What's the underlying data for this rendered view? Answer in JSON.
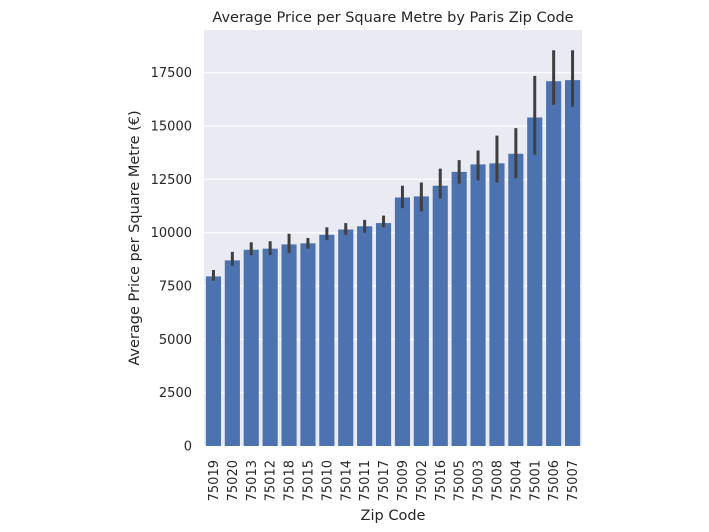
{
  "colors": {
    "plot_background": "#eaeaf2",
    "grid": "#ffffff",
    "bar": "#4c72b0",
    "error_bar": "#3f3f3f",
    "text": "#262626"
  },
  "chart_data": {
    "type": "bar",
    "title": "Average Price per Square Metre by Paris Zip Code",
    "xlabel": "Zip Code",
    "ylabel": "Average Price per Square Metre (€)",
    "ylim": [
      0,
      19500
    ],
    "yticks": [
      0,
      2500,
      5000,
      7500,
      10000,
      12500,
      15000,
      17500
    ],
    "ytick_labels": [
      "0",
      "2500",
      "5000",
      "7500",
      "10000",
      "12500",
      "15000",
      "17500"
    ],
    "grid": "horizontal",
    "categories": [
      "75019",
      "75020",
      "75013",
      "75012",
      "75018",
      "75015",
      "75010",
      "75014",
      "75011",
      "75017",
      "75009",
      "75002",
      "75016",
      "75005",
      "75003",
      "75008",
      "75004",
      "75001",
      "75006",
      "75007"
    ],
    "values": [
      7950,
      8700,
      9200,
      9250,
      9450,
      9500,
      9900,
      10150,
      10300,
      10450,
      11650,
      11700,
      12200,
      12850,
      13200,
      13250,
      13700,
      15400,
      17100,
      17150
    ],
    "error_low": [
      7750,
      8450,
      8950,
      8950,
      9050,
      9250,
      9650,
      9900,
      10000,
      10250,
      11150,
      11000,
      11600,
      12300,
      12450,
      12350,
      12550,
      13650,
      16000,
      15900
    ],
    "error_high": [
      8250,
      9100,
      9550,
      9600,
      9950,
      9750,
      10250,
      10450,
      10600,
      10800,
      12200,
      12350,
      13000,
      13400,
      13850,
      14550,
      14900,
      17350,
      18550,
      18550
    ]
  }
}
